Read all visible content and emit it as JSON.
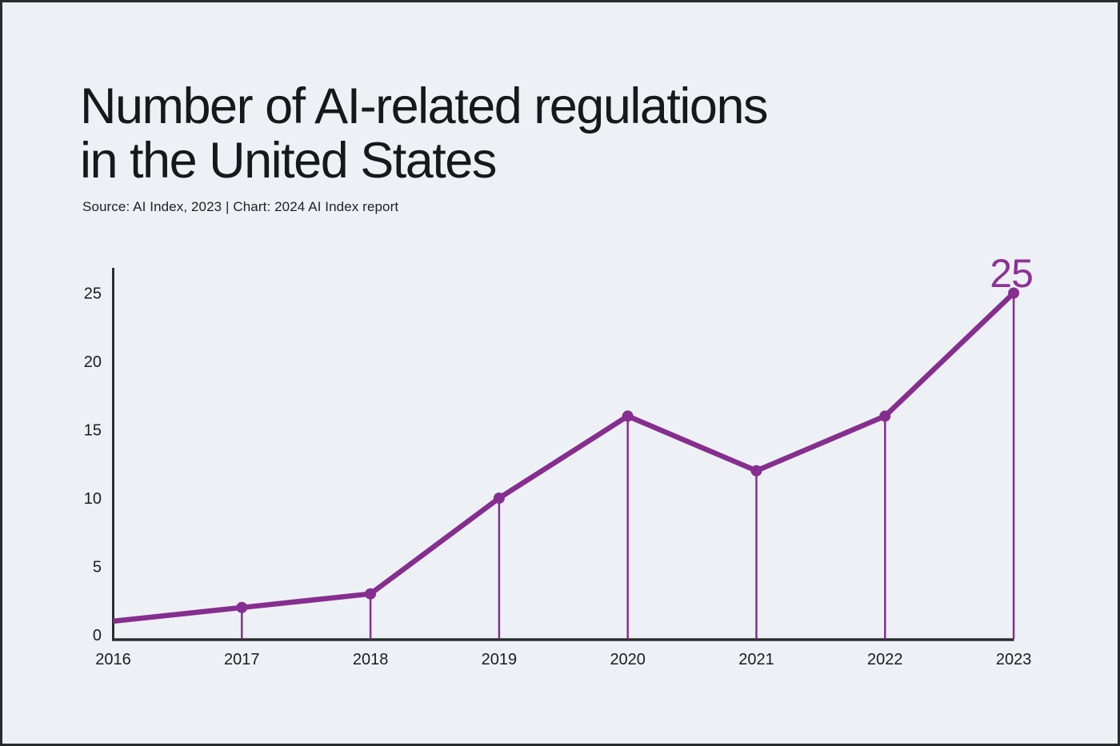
{
  "page": {
    "background": "#edf1f6",
    "frame_color": "#2a2b2d",
    "text_color": "#17181a"
  },
  "header": {
    "title_lines": [
      "Number of AI-related regulations",
      "in the United States"
    ],
    "source_line": "Source: AI Index, 2023 | Chart: 2024 AI Index report"
  },
  "chart_data": {
    "type": "line",
    "title": "Number of AI-related regulations in the United States",
    "source": "Source: AI Index, 2023 | Chart: 2024 AI Index report",
    "x": [
      "2016",
      "2017",
      "2018",
      "2019",
      "2020",
      "2021",
      "2022",
      "2023"
    ],
    "values": [
      1,
      2,
      3,
      10,
      16,
      12,
      16,
      25
    ],
    "yticks": [
      0,
      5,
      10,
      15,
      20,
      25
    ],
    "ylim": [
      0,
      25
    ],
    "xlabel": "",
    "ylabel": "",
    "grid": false,
    "legend": null,
    "marker_on_first_point": false,
    "drop_lines_from_points": true,
    "last_point_label": "25",
    "colors": {
      "line": "#862e8f",
      "marker": "#862e8f",
      "drop_line": "#862e8f",
      "last_point_label": "#8e3196",
      "axis": "#2b2c2e",
      "tick_text": "#1b1c1e"
    }
  }
}
